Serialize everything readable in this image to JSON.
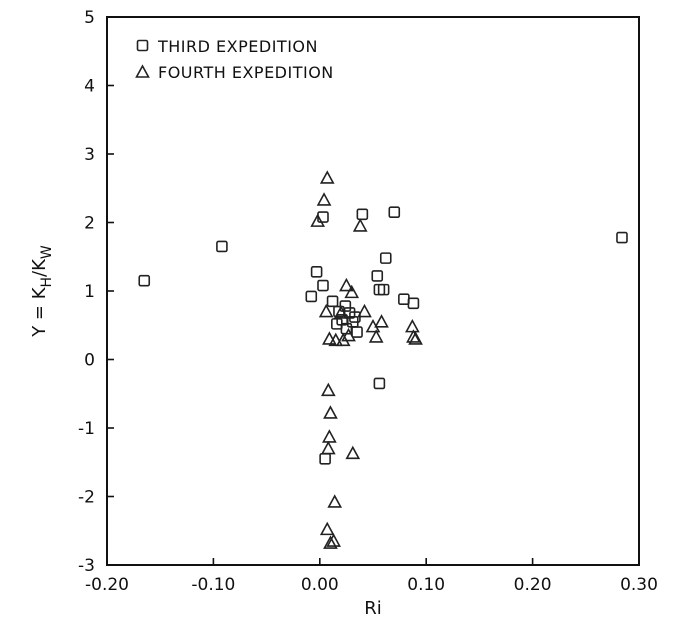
{
  "chart_data": {
    "type": "scatter",
    "xlabel": "Ri",
    "ylabel": "Y = K_H/K_W",
    "xlim": [
      -0.2,
      0.3
    ],
    "ylim": [
      -3,
      5
    ],
    "xticks": [
      "-0.20",
      "-0.10",
      "0.00",
      "0.10",
      "0.20",
      "0.30"
    ],
    "yticks": [
      "-3",
      "-2",
      "-1",
      "0",
      "1",
      "2",
      "3",
      "4",
      "5"
    ],
    "grid": false,
    "legend_position": "top-left",
    "series": [
      {
        "name": "THIRD EXPEDITION",
        "marker": "square",
        "points": [
          {
            "x": -0.165,
            "y": 1.15
          },
          {
            "x": -0.092,
            "y": 1.65
          },
          {
            "x": -0.008,
            "y": 0.92
          },
          {
            "x": -0.003,
            "y": 1.28
          },
          {
            "x": 0.003,
            "y": 1.08
          },
          {
            "x": 0.003,
            "y": 2.08
          },
          {
            "x": 0.005,
            "y": -1.45
          },
          {
            "x": 0.012,
            "y": 0.85
          },
          {
            "x": 0.016,
            "y": 0.52
          },
          {
            "x": 0.018,
            "y": 0.7
          },
          {
            "x": 0.021,
            "y": 0.58
          },
          {
            "x": 0.024,
            "y": 0.78
          },
          {
            "x": 0.025,
            "y": 0.45
          },
          {
            "x": 0.028,
            "y": 0.68
          },
          {
            "x": 0.031,
            "y": 0.55
          },
          {
            "x": 0.033,
            "y": 0.62
          },
          {
            "x": 0.035,
            "y": 0.4
          },
          {
            "x": 0.04,
            "y": 2.12
          },
          {
            "x": 0.054,
            "y": 1.22
          },
          {
            "x": 0.056,
            "y": 1.02
          },
          {
            "x": 0.056,
            "y": -0.35
          },
          {
            "x": 0.06,
            "y": 1.02
          },
          {
            "x": 0.062,
            "y": 1.48
          },
          {
            "x": 0.07,
            "y": 2.15
          },
          {
            "x": 0.079,
            "y": 0.88
          },
          {
            "x": 0.088,
            "y": 0.82
          },
          {
            "x": 0.284,
            "y": 1.78
          }
        ]
      },
      {
        "name": "FOURTH EXPEDITION",
        "marker": "triangle",
        "points": [
          {
            "x": -0.002,
            "y": 2.02
          },
          {
            "x": 0.004,
            "y": 2.33
          },
          {
            "x": 0.007,
            "y": 2.65
          },
          {
            "x": 0.006,
            "y": 0.7
          },
          {
            "x": 0.009,
            "y": 0.3
          },
          {
            "x": 0.008,
            "y": -0.45
          },
          {
            "x": 0.01,
            "y": -0.78
          },
          {
            "x": 0.009,
            "y": -1.13
          },
          {
            "x": 0.008,
            "y": -1.3
          },
          {
            "x": 0.007,
            "y": -2.48
          },
          {
            "x": 0.01,
            "y": -2.68
          },
          {
            "x": 0.013,
            "y": -2.65
          },
          {
            "x": 0.014,
            "y": -2.08
          },
          {
            "x": 0.015,
            "y": 0.28
          },
          {
            "x": 0.02,
            "y": 0.68
          },
          {
            "x": 0.022,
            "y": 0.28
          },
          {
            "x": 0.025,
            "y": 1.08
          },
          {
            "x": 0.027,
            "y": 0.35
          },
          {
            "x": 0.03,
            "y": 0.98
          },
          {
            "x": 0.031,
            "y": -1.37
          },
          {
            "x": 0.038,
            "y": 1.95
          },
          {
            "x": 0.042,
            "y": 0.7
          },
          {
            "x": 0.05,
            "y": 0.48
          },
          {
            "x": 0.053,
            "y": 0.33
          },
          {
            "x": 0.058,
            "y": 0.55
          },
          {
            "x": 0.087,
            "y": 0.48
          },
          {
            "x": 0.088,
            "y": 0.33
          },
          {
            "x": 0.09,
            "y": 0.3
          }
        ]
      }
    ]
  }
}
